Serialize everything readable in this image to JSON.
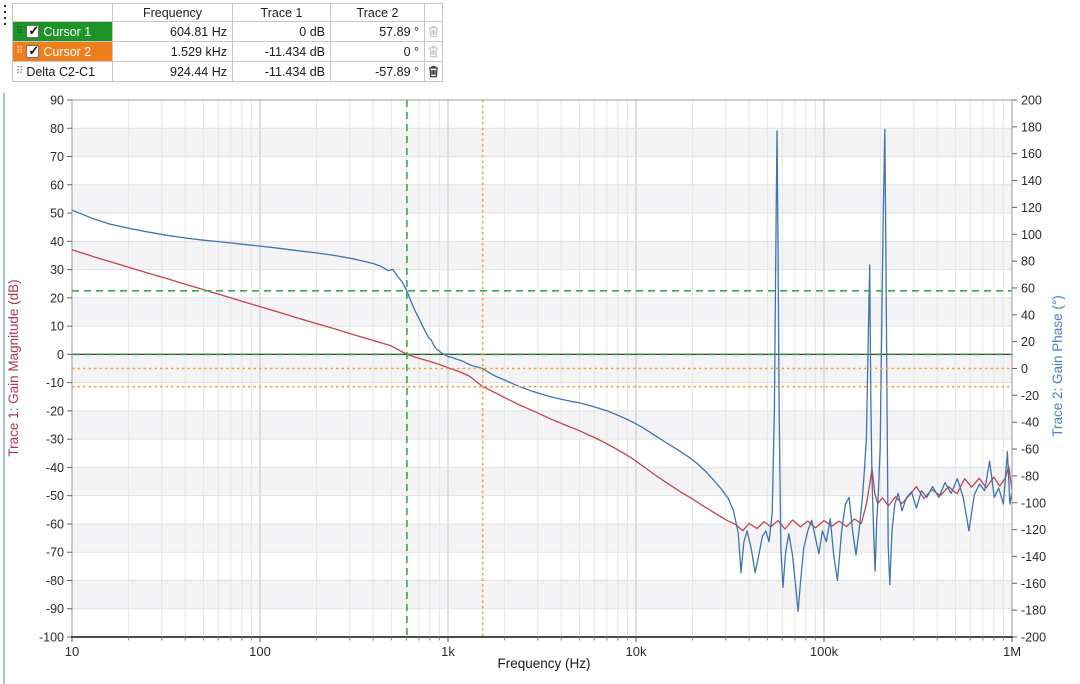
{
  "table": {
    "columns": [
      "",
      "Frequency",
      "Trace 1",
      "Trace 2",
      ""
    ],
    "rows": [
      {
        "label": "Cursor 1",
        "checked": true,
        "row_color": "#1e9428",
        "text_color": "#ffffff",
        "grip_color": "#0f5c1e",
        "frequency": "604.81 Hz",
        "trace1": "0 dB",
        "trace2": "57.89 °",
        "trash_enabled": false
      },
      {
        "label": "Cursor 2",
        "checked": true,
        "row_color": "#ef7f1d",
        "text_color": "#ffffff",
        "grip_color": "#f9d9b5",
        "frequency": "1.529 kHz",
        "trace1": "-11.434 dB",
        "trace2": "0 °",
        "trash_enabled": false
      },
      {
        "label": "Delta C2-C1",
        "checked": null,
        "row_color": "#ffffff",
        "text_color": "#1a1a1a",
        "grip_color": "#8f8f8f",
        "frequency": "924.44 Hz",
        "trace1": "-11.434 dB",
        "trace2": "-57.89 °",
        "trash_enabled": true
      }
    ]
  },
  "chart_data": {
    "type": "line",
    "x_axis": {
      "label": "Frequency (Hz)",
      "scale": "log",
      "min": 10,
      "max": 1000000,
      "tick_labels": [
        "10",
        "100",
        "1k",
        "10k",
        "100k",
        "1M"
      ]
    },
    "y_left": {
      "label": "Trace 1: Gain Magnitude (dB)",
      "min": -100,
      "max": 90,
      "step": 10,
      "color": "#b13a4d"
    },
    "y_right": {
      "label": "Trace 2: Gain Phase (°)",
      "min": -200,
      "max": 200,
      "step": 20,
      "color": "#4a7fc1"
    },
    "grid": true,
    "cursors": [
      {
        "name": "Cursor 1",
        "color": "#3aa94a",
        "dash": "7,5",
        "freq": 604.81,
        "trace1_db": 0,
        "trace2_deg": 57.89
      },
      {
        "name": "Cursor 2",
        "color": "#f6a23c",
        "dash": "2.5,3",
        "freq": 1529,
        "trace1_db": -11.434,
        "trace2_deg": 0
      }
    ],
    "series": [
      {
        "name": "Trace 1: Gain Magnitude (dB)",
        "axis": "left",
        "color": "#c2444e",
        "points": [
          [
            10,
            37
          ],
          [
            13,
            34.6
          ],
          [
            16,
            32.8
          ],
          [
            20,
            30.8
          ],
          [
            25,
            28.9
          ],
          [
            32,
            26.8
          ],
          [
            40,
            24.8
          ],
          [
            50,
            22.9
          ],
          [
            63,
            20.9
          ],
          [
            80,
            18.8
          ],
          [
            100,
            16.9
          ],
          [
            125,
            15
          ],
          [
            160,
            12.8
          ],
          [
            200,
            10.9
          ],
          [
            250,
            9
          ],
          [
            320,
            6.8
          ],
          [
            400,
            4.9
          ],
          [
            500,
            3
          ],
          [
            604.81,
            0
          ],
          [
            700,
            -1.4
          ],
          [
            800,
            -2.5
          ],
          [
            900,
            -3.6
          ],
          [
            1000,
            -4.7
          ],
          [
            1150,
            -6.1
          ],
          [
            1300,
            -7.7
          ],
          [
            1529,
            -11.4
          ],
          [
            1750,
            -13.3
          ],
          [
            2000,
            -15.3
          ],
          [
            2400,
            -17.9
          ],
          [
            2900,
            -20.3
          ],
          [
            3500,
            -22.8
          ],
          [
            4200,
            -25
          ],
          [
            5000,
            -27
          ],
          [
            6000,
            -29.4
          ],
          [
            7000,
            -31.6
          ],
          [
            8200,
            -34.2
          ],
          [
            9500,
            -36.7
          ],
          [
            11000,
            -39.8
          ],
          [
            13000,
            -43.2
          ],
          [
            15000,
            -46
          ],
          [
            17500,
            -48.9
          ],
          [
            20000,
            -51.2
          ],
          [
            23000,
            -53.8
          ],
          [
            26000,
            -56
          ],
          [
            30000,
            -58.5
          ],
          [
            34000,
            -60.3
          ],
          [
            37000,
            -62.4
          ],
          [
            40000,
            -59.8
          ],
          [
            44000,
            -61.6
          ],
          [
            48000,
            -59.2
          ],
          [
            52000,
            -61
          ],
          [
            57000,
            -58.8
          ],
          [
            62000,
            -61.8
          ],
          [
            68000,
            -58.6
          ],
          [
            75000,
            -61
          ],
          [
            82000,
            -59
          ],
          [
            90000,
            -61.4
          ],
          [
            100000,
            -58.8
          ],
          [
            110000,
            -60.8
          ],
          [
            120000,
            -59
          ],
          [
            132000,
            -60.9
          ],
          [
            145000,
            -58.2
          ],
          [
            158000,
            -59.8
          ],
          [
            168000,
            -53
          ],
          [
            175000,
            -46
          ],
          [
            180000,
            -40.3
          ],
          [
            186000,
            -49
          ],
          [
            193000,
            -52.8
          ],
          [
            205000,
            -50.8
          ],
          [
            220000,
            -53.6
          ],
          [
            240000,
            -50.4
          ],
          [
            260000,
            -52.8
          ],
          [
            285000,
            -49.8
          ],
          [
            310000,
            -46.8
          ],
          [
            340000,
            -51
          ],
          [
            375000,
            -47.8
          ],
          [
            415000,
            -50
          ],
          [
            460000,
            -46.8
          ],
          [
            510000,
            -49.3
          ],
          [
            560000,
            -44
          ],
          [
            610000,
            -47
          ],
          [
            670000,
            -43.8
          ],
          [
            730000,
            -47.2
          ],
          [
            800000,
            -43.4
          ],
          [
            860000,
            -46.6
          ],
          [
            920000,
            -43.8
          ],
          [
            960000,
            -39.6
          ],
          [
            1000000,
            -48
          ]
        ]
      },
      {
        "name": "Trace 2: Gain Phase (°)",
        "axis": "right",
        "color": "#3f74b0",
        "points": [
          [
            10,
            118
          ],
          [
            13,
            111.5
          ],
          [
            16,
            107.5
          ],
          [
            20,
            104.5
          ],
          [
            25,
            101.8
          ],
          [
            32,
            99.2
          ],
          [
            40,
            97.2
          ],
          [
            50,
            95.6
          ],
          [
            63,
            94.2
          ],
          [
            80,
            92.6
          ],
          [
            100,
            91.2
          ],
          [
            125,
            89.6
          ],
          [
            160,
            87.7
          ],
          [
            200,
            86.1
          ],
          [
            250,
            84.2
          ],
          [
            320,
            81.4
          ],
          [
            400,
            78.2
          ],
          [
            440,
            76.1
          ],
          [
            480,
            72.9
          ],
          [
            510,
            73.8
          ],
          [
            540,
            68.4
          ],
          [
            570,
            64.6
          ],
          [
            604.81,
            57.89
          ],
          [
            625,
            52.5
          ],
          [
            645,
            47.8
          ],
          [
            665,
            43.6
          ],
          [
            690,
            39.2
          ],
          [
            715,
            34.8
          ],
          [
            740,
            30.4
          ],
          [
            765,
            26.5
          ],
          [
            790,
            22.8
          ],
          [
            815,
            21.2
          ],
          [
            840,
            17.3
          ],
          [
            865,
            14.6
          ],
          [
            890,
            13.4
          ],
          [
            920,
            11.8
          ],
          [
            960,
            10.2
          ],
          [
            1000,
            8.9
          ],
          [
            1060,
            8.1
          ],
          [
            1120,
            6.7
          ],
          [
            1180,
            5.9
          ],
          [
            1250,
            4
          ],
          [
            1350,
            1.9
          ],
          [
            1450,
            0.9
          ],
          [
            1529,
            0
          ],
          [
            1650,
            -3
          ],
          [
            1800,
            -5.9
          ],
          [
            2000,
            -8.6
          ],
          [
            2250,
            -11.8
          ],
          [
            2500,
            -14.4
          ],
          [
            2800,
            -16.9
          ],
          [
            3200,
            -19.4
          ],
          [
            3600,
            -21.4
          ],
          [
            4000,
            -22.9
          ],
          [
            4500,
            -24.4
          ],
          [
            5000,
            -25.6
          ],
          [
            5600,
            -27.4
          ],
          [
            6300,
            -29.5
          ],
          [
            7000,
            -31.4
          ],
          [
            7800,
            -34.2
          ],
          [
            8700,
            -37
          ],
          [
            9700,
            -40.2
          ],
          [
            10800,
            -43.8
          ],
          [
            12000,
            -47.9
          ],
          [
            13500,
            -52.6
          ],
          [
            15000,
            -56.6
          ],
          [
            17000,
            -61.3
          ],
          [
            19000,
            -65.8
          ],
          [
            21000,
            -70.4
          ],
          [
            23500,
            -76.8
          ],
          [
            26000,
            -83.4
          ],
          [
            28500,
            -89.9
          ],
          [
            31000,
            -97
          ],
          [
            33000,
            -106
          ],
          [
            35000,
            -123
          ],
          [
            36200,
            -152
          ],
          [
            37500,
            -129
          ],
          [
            39000,
            -121
          ],
          [
            41000,
            -134
          ],
          [
            43000,
            -152
          ],
          [
            45000,
            -139
          ],
          [
            47000,
            -125
          ],
          [
            49000,
            -121
          ],
          [
            51000,
            -129
          ],
          [
            53000,
            -108
          ],
          [
            54500,
            -30
          ],
          [
            55600,
            110
          ],
          [
            56200,
            177
          ],
          [
            56900,
            95
          ],
          [
            57800,
            -35
          ],
          [
            59000,
            -135
          ],
          [
            60500,
            -163
          ],
          [
            62500,
            -137
          ],
          [
            65000,
            -123
          ],
          [
            68000,
            -139
          ],
          [
            70500,
            -161
          ],
          [
            72800,
            -181
          ],
          [
            75000,
            -159
          ],
          [
            78000,
            -134
          ],
          [
            82000,
            -121
          ],
          [
            86000,
            -113
          ],
          [
            90000,
            -126
          ],
          [
            94000,
            -138
          ],
          [
            98000,
            -121
          ],
          [
            103000,
            -129
          ],
          [
            108000,
            -112
          ],
          [
            113000,
            -141
          ],
          [
            118000,
            -158
          ],
          [
            124000,
            -121
          ],
          [
            130000,
            -101
          ],
          [
            136000,
            -96
          ],
          [
            142000,
            -121
          ],
          [
            148000,
            -139
          ],
          [
            154000,
            -119
          ],
          [
            160000,
            -96
          ],
          [
            164000,
            -76
          ],
          [
            168000,
            -52
          ],
          [
            172000,
            24
          ],
          [
            175000,
            77
          ],
          [
            177500,
            -22
          ],
          [
            180000,
            -82
          ],
          [
            183500,
            -121
          ],
          [
            187000,
            -151
          ],
          [
            191000,
            -112
          ],
          [
            195000,
            -91
          ],
          [
            199000,
            -58
          ],
          [
            203000,
            35
          ],
          [
            207000,
            122
          ],
          [
            210500,
            178
          ],
          [
            213500,
            88
          ],
          [
            216500,
            -35
          ],
          [
            219500,
            -132
          ],
          [
            224000,
            -161
          ],
          [
            230000,
            -121
          ],
          [
            238000,
            -101
          ],
          [
            248000,
            -93
          ],
          [
            260000,
            -106
          ],
          [
            275000,
            -96
          ],
          [
            292000,
            -92
          ],
          [
            310000,
            -104
          ],
          [
            330000,
            -91
          ],
          [
            352000,
            -96
          ],
          [
            378000,
            -88
          ],
          [
            408000,
            -96
          ],
          [
            440000,
            -85
          ],
          [
            475000,
            -93
          ],
          [
            512000,
            -82
          ],
          [
            550000,
            -96
          ],
          [
            590000,
            -121
          ],
          [
            630000,
            -94
          ],
          [
            672000,
            -86
          ],
          [
            715000,
            -91
          ],
          [
            760000,
            -69
          ],
          [
            805000,
            -96
          ],
          [
            850000,
            -89
          ],
          [
            900000,
            -101
          ],
          [
            945000,
            -62
          ],
          [
            975000,
            -101
          ],
          [
            1000000,
            -92
          ]
        ]
      }
    ]
  }
}
